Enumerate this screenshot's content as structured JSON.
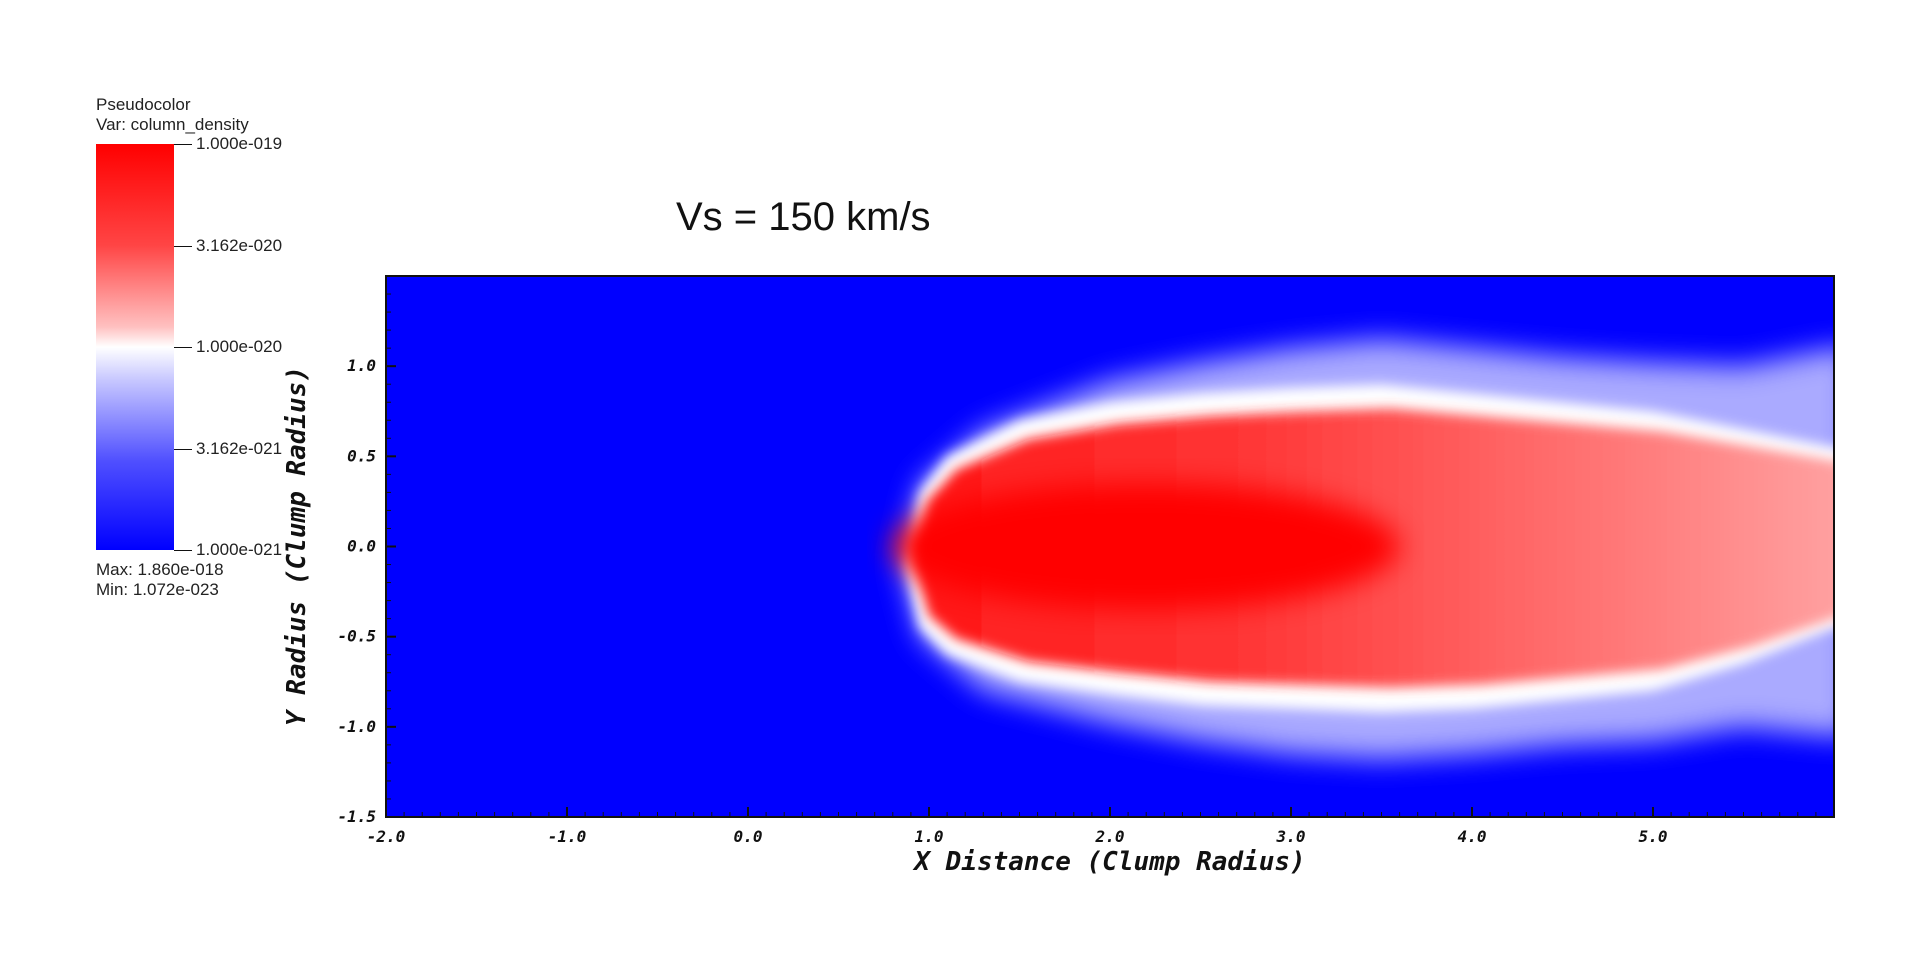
{
  "legend": {
    "title_line1": "Pseudocolor",
    "title_line2": "Var: column_density",
    "ticks": [
      "1.000e-019",
      "3.162e-020",
      "1.000e-020",
      "3.162e-021",
      "1.000e-021"
    ],
    "max_label": "Max:  1.860e-018",
    "min_label": "Min:  1.072e-023",
    "colors": {
      "high": "#ff0000",
      "mid": "#ffffff",
      "low": "#0000ff"
    }
  },
  "chart_data": {
    "type": "heatmap",
    "title": "Vs = 150 km/s",
    "xlabel": "X Distance (Clump Radius)",
    "ylabel": "Y Radius (Clump Radius)",
    "xlim": [
      -2.0,
      6.0
    ],
    "ylim": [
      -1.5,
      1.5
    ],
    "x_ticks": [
      "-2.0",
      "-1.0",
      "0.0",
      "1.0",
      "2.0",
      "3.0",
      "4.0",
      "5.0"
    ],
    "y_ticks": [
      "-1.5",
      "-1.0",
      "-0.5",
      "0.0",
      "0.5",
      "1.0"
    ],
    "x_tick_values": [
      -2.0,
      -1.0,
      0.0,
      1.0,
      2.0,
      3.0,
      4.0,
      5.0
    ],
    "y_tick_values": [
      -1.5,
      -1.0,
      -0.5,
      0.0,
      0.5,
      1.0
    ],
    "background_color": "#0000ff",
    "plume": {
      "head_x": 0.87,
      "tail_x": 6.0,
      "upper_edge": [
        [
          0.87,
          -0.1
        ],
        [
          0.95,
          0.3
        ],
        [
          1.1,
          0.5
        ],
        [
          1.5,
          0.7
        ],
        [
          2.0,
          0.8
        ],
        [
          2.5,
          0.85
        ],
        [
          3.0,
          0.88
        ],
        [
          3.5,
          0.9
        ],
        [
          4.0,
          0.85
        ],
        [
          4.5,
          0.8
        ],
        [
          5.0,
          0.75
        ],
        [
          5.5,
          0.65
        ],
        [
          6.0,
          0.55
        ]
      ],
      "lower_edge": [
        [
          0.87,
          -0.1
        ],
        [
          0.95,
          -0.45
        ],
        [
          1.1,
          -0.6
        ],
        [
          1.5,
          -0.75
        ],
        [
          2.0,
          -0.82
        ],
        [
          2.5,
          -0.88
        ],
        [
          3.0,
          -0.9
        ],
        [
          3.5,
          -0.92
        ],
        [
          4.0,
          -0.9
        ],
        [
          4.5,
          -0.85
        ],
        [
          5.0,
          -0.8
        ],
        [
          5.5,
          -0.65
        ],
        [
          6.0,
          -0.45
        ]
      ],
      "halo_upper": [
        [
          0.85,
          -0.1
        ],
        [
          0.95,
          0.35
        ],
        [
          1.3,
          0.65
        ],
        [
          2.0,
          0.92
        ],
        [
          2.5,
          1.02
        ],
        [
          3.0,
          1.1
        ],
        [
          3.5,
          1.15
        ],
        [
          4.0,
          1.1
        ],
        [
          4.5,
          1.05
        ],
        [
          5.0,
          1.02
        ],
        [
          5.5,
          1.0
        ],
        [
          6.0,
          1.1
        ]
      ],
      "halo_lower": [
        [
          0.85,
          -0.1
        ],
        [
          0.95,
          -0.5
        ],
        [
          1.3,
          -0.8
        ],
        [
          2.0,
          -0.98
        ],
        [
          2.5,
          -1.08
        ],
        [
          3.0,
          -1.15
        ],
        [
          3.5,
          -1.18
        ],
        [
          4.0,
          -1.15
        ],
        [
          4.5,
          -1.1
        ],
        [
          5.0,
          -1.08
        ],
        [
          5.5,
          -1.0
        ],
        [
          6.0,
          -1.05
        ]
      ]
    }
  }
}
